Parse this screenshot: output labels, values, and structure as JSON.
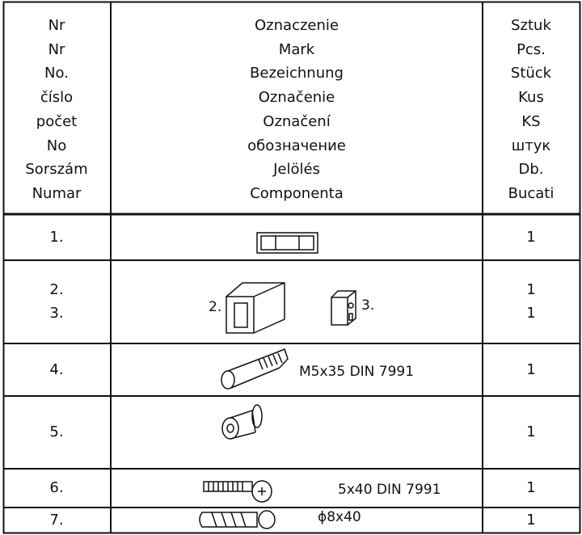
{
  "header": {
    "columns": [
      [
        "Nr",
        "Nr",
        "No.",
        "číslo",
        "počet",
        "No",
        "Sorszám",
        "Numar"
      ],
      [
        "Oznaczenie",
        "Mark",
        "Bezeichnung",
        "Označenie",
        "Označení",
        "обозначение",
        "Jelölés",
        "Componenta"
      ],
      [
        "Sztuk",
        "Pcs.",
        "Stück",
        "Kus",
        "KS",
        "штук",
        "Db.",
        "Bucati"
      ]
    ]
  },
  "rows": [
    {
      "number": [
        "1."
      ],
      "quantity": [
        "1"
      ]
    },
    {
      "number": [
        "2.",
        "3."
      ],
      "part_labels": [
        "2.",
        "3."
      ],
      "quantity": [
        "1",
        "1"
      ]
    },
    {
      "number": [
        "4."
      ],
      "specification": "M5x35 DIN 7991",
      "quantity": [
        "1"
      ]
    },
    {
      "number": [
        "5."
      ],
      "quantity": [
        "1"
      ]
    },
    {
      "number": [
        "6."
      ],
      "specification": "5x40 DIN 7991",
      "quantity": [
        "1"
      ]
    },
    {
      "number": [
        "7."
      ],
      "specification": "ϕ8x40",
      "quantity": [
        "1"
      ]
    }
  ]
}
